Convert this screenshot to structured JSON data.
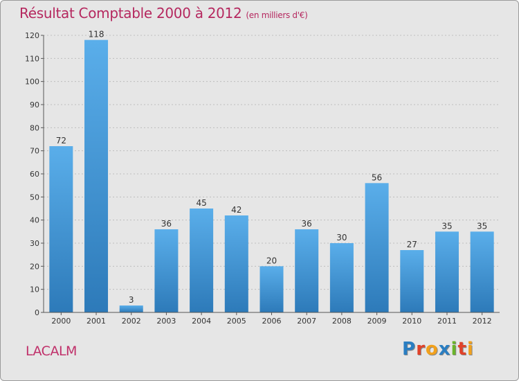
{
  "chart_data": {
    "type": "bar",
    "title": "Résultat Comptable 2000 à 2012",
    "subtitle": "(en milliers d'€)",
    "categories": [
      "2000",
      "2001",
      "2002",
      "2003",
      "2004",
      "2005",
      "2006",
      "2007",
      "2008",
      "2009",
      "2010",
      "2011",
      "2012"
    ],
    "values": [
      72,
      118,
      3,
      36,
      45,
      42,
      20,
      36,
      30,
      56,
      27,
      35,
      35
    ],
    "ylim": [
      0,
      120
    ],
    "yticks": [
      0,
      10,
      20,
      30,
      40,
      50,
      60,
      70,
      80,
      90,
      100,
      110,
      120
    ],
    "xlabel": "",
    "ylabel": "",
    "grid": true
  },
  "commune": "LACALM",
  "logo": {
    "letters": [
      "P",
      "r",
      "o",
      "x",
      "i",
      "t",
      "i"
    ],
    "colors": [
      "#2a7ec2",
      "#e0422a",
      "#f2a11c",
      "#2a7ec2",
      "#6ab42a",
      "#e0422a",
      "#f2a11c"
    ]
  },
  "colors": {
    "bar_light": "#5aaeea",
    "bar_dark": "#2d7ab9",
    "title": "#b5285f"
  }
}
